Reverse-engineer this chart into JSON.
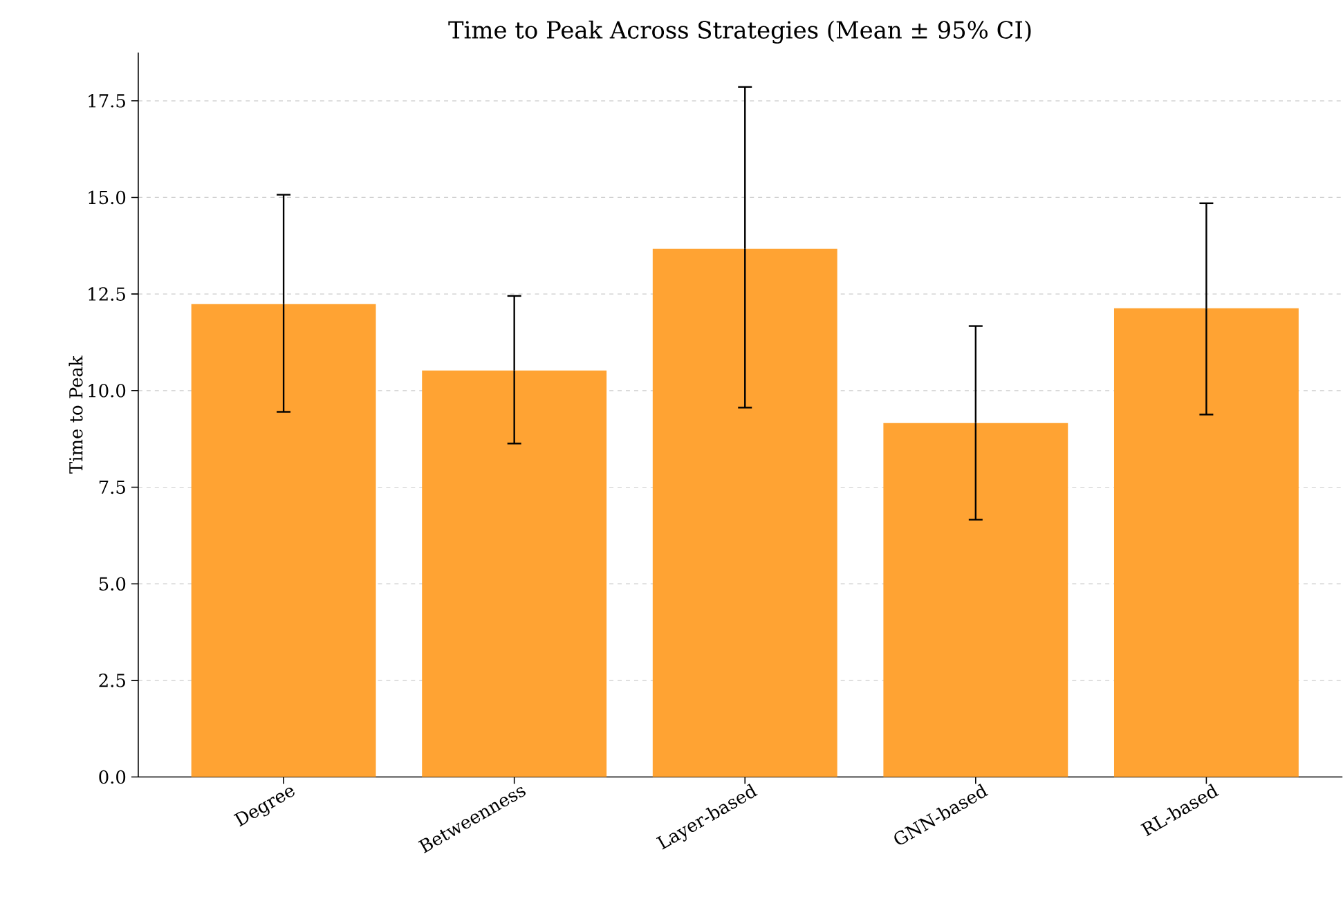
{
  "chart_data": {
    "type": "bar",
    "title": "Time to Peak Across Strategies (Mean ± 95% CI)",
    "ylabel": "Time to Peak",
    "categories": [
      "Degree",
      "Betweenness",
      "Layer-based",
      "GNN-based",
      "RL-based"
    ],
    "values": [
      12.24,
      10.52,
      13.67,
      9.16,
      12.13
    ],
    "errors": [
      [
        9.45,
        15.07
      ],
      [
        8.63,
        12.45
      ],
      [
        9.56,
        17.86
      ],
      [
        6.66,
        11.67
      ],
      [
        9.38,
        14.85
      ]
    ],
    "color": "#ffa333",
    "ylim": [
      0,
      18.75
    ],
    "yticks": [
      {
        "value": 0,
        "label": "0.0"
      },
      {
        "value": 2.5,
        "label": "2.5"
      },
      {
        "value": 5,
        "label": "5.0"
      },
      {
        "value": 7.5,
        "label": "7.5"
      },
      {
        "value": 10,
        "label": "10.0"
      },
      {
        "value": 12.5,
        "label": "12.5"
      },
      {
        "value": 15,
        "label": "15.0"
      },
      {
        "value": 17.5,
        "label": "17.5"
      }
    ],
    "grid": "y"
  }
}
